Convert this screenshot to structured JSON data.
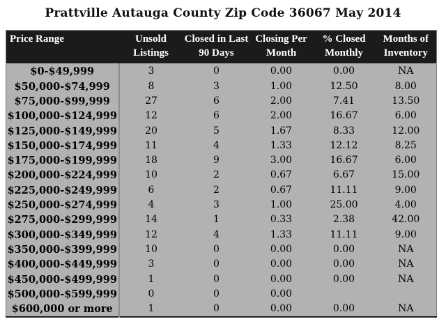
{
  "chart_data": {
    "type": "table",
    "title": "Prattville Autauga County Zip Code 36067 May 2014",
    "columns": [
      "Price Range",
      "Unsold Listings",
      "Closed in Last 90 Days",
      "Closing Per Month",
      "% Closed Monthly",
      "Months of Inventory"
    ],
    "column_keys": [
      "price-range",
      "unsold-listings",
      "closed-last-90-days",
      "closing-per-month",
      "pct-closed-monthly",
      "months-of-inventory"
    ],
    "rows": [
      [
        "$0-$49,999",
        "3",
        "0",
        "0.00",
        "0.00",
        "NA"
      ],
      [
        "$50,000-$74,999",
        "8",
        "3",
        "1.00",
        "12.50",
        "8.00"
      ],
      [
        "$75,000-$99,999",
        "27",
        "6",
        "2.00",
        "7.41",
        "13.50"
      ],
      [
        "$100,000-$124,999",
        "12",
        "6",
        "2.00",
        "16.67",
        "6.00"
      ],
      [
        "$125,000-$149,999",
        "20",
        "5",
        "1.67",
        "8.33",
        "12.00"
      ],
      [
        "$150,000-$174,999",
        "11",
        "4",
        "1.33",
        "12.12",
        "8.25"
      ],
      [
        "$175,000-$199,999",
        "18",
        "9",
        "3.00",
        "16.67",
        "6.00"
      ],
      [
        "$200,000-$224,999",
        "10",
        "2",
        "0.67",
        "6.67",
        "15.00"
      ],
      [
        "$225,000-$249,999",
        "6",
        "2",
        "0.67",
        "11.11",
        "9.00"
      ],
      [
        "$250,000-$274,999",
        "4",
        "3",
        "1.00",
        "25.00",
        "4.00"
      ],
      [
        "$275,000-$299,999",
        "14",
        "1",
        "0.33",
        "2.38",
        "42.00"
      ],
      [
        "$300,000-$349,999",
        "12",
        "4",
        "1.33",
        "11.11",
        "9.00"
      ],
      [
        "$350,000-$399,999",
        "10",
        "0",
        "0.00",
        "0.00",
        "NA"
      ],
      [
        "$400,000-$449,999",
        "3",
        "0",
        "0.00",
        "0.00",
        "NA"
      ],
      [
        "$450,000-$499,999",
        "1",
        "0",
        "0.00",
        "0.00",
        "NA"
      ],
      [
        "$500,000-$599,999",
        "0",
        "0",
        "0.00",
        "",
        ""
      ],
      [
        "$600,000 or more",
        "1",
        "0",
        "0.00",
        "0.00",
        "NA"
      ]
    ],
    "layout_hints": {
      "header_alignment": "center",
      "first_column_header_alignment": "left",
      "body_alignment": "center",
      "grid": "divider after first column only, no horizontal row lines"
    }
  },
  "colors": {
    "page_background": "#ffffff",
    "header_background": "#1b1b1b",
    "header_text": "#ffffff",
    "body_background": "#b2b2b2",
    "body_text": "#000000",
    "column_divider": "#8d8d8d",
    "outer_border": "#7c7c7c",
    "bottom_border": "#222222"
  }
}
